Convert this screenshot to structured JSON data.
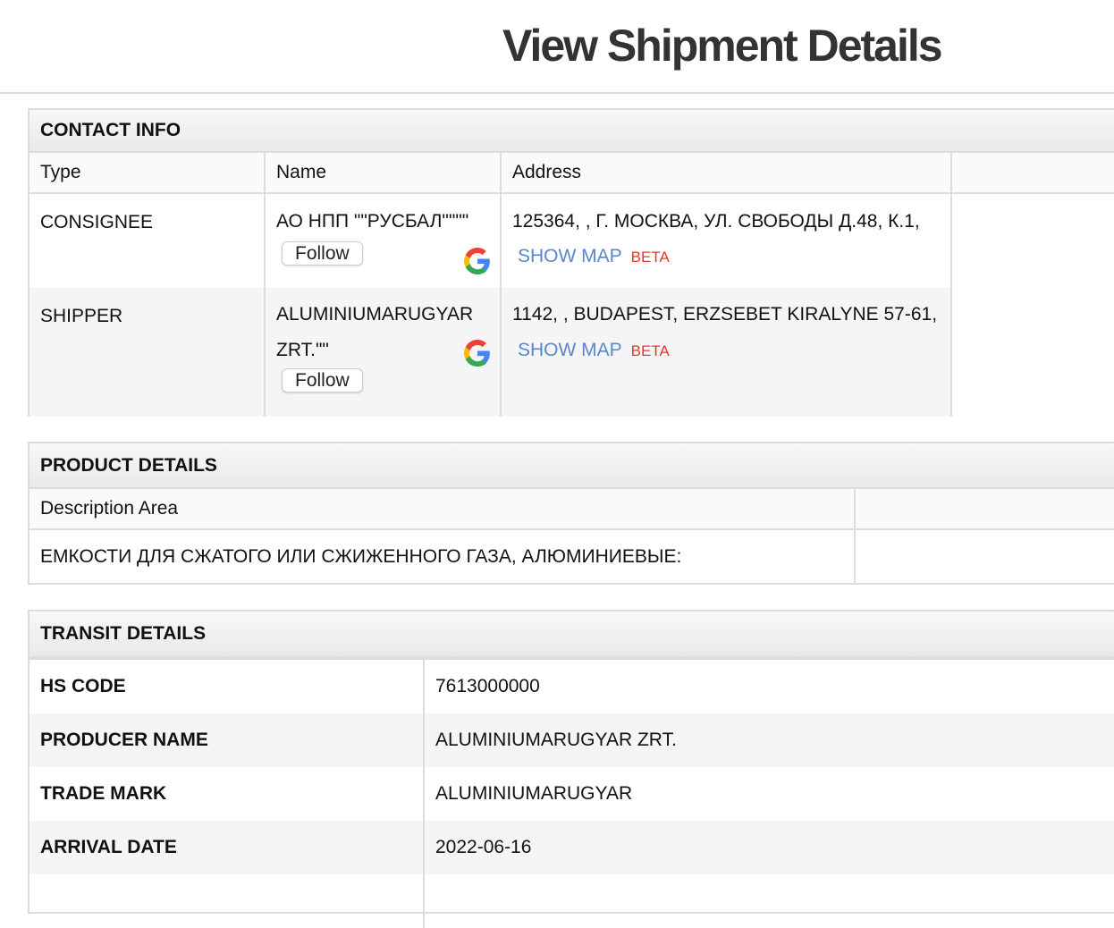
{
  "page_title": "View Shipment Details",
  "contact": {
    "heading": "CONTACT INFO",
    "columns": [
      "Type",
      "Name",
      "Address"
    ],
    "rows": [
      {
        "type": "CONSIGNEE",
        "name": "АО НПП \"\"РУСБАЛ\"\"\"\"",
        "follow": "Follow",
        "address": "125364, , Г. МОСКВА, УЛ. СВОБОДЫ Д.48, К.1,",
        "show_map": "SHOW MAP",
        "beta": "BETA"
      },
      {
        "type": "SHIPPER",
        "name": "ALUMINIUMARUGYAR ZRT.\"\"",
        "follow": "Follow",
        "address": "1142, , BUDAPEST, ERZSEBET KIRALYNE 57-61,",
        "show_map": "SHOW MAP",
        "beta": "BETA"
      }
    ]
  },
  "product": {
    "heading": "PRODUCT DETAILS",
    "column": "Description Area",
    "description": "ЕМКОСТИ ДЛЯ СЖАТОГО ИЛИ СЖИЖЕННОГО ГАЗА, АЛЮМИНИЕВЫЕ:"
  },
  "transit": {
    "heading": "TRANSIT DETAILS",
    "rows": [
      {
        "key": "HS CODE",
        "value": "7613000000"
      },
      {
        "key": "PRODUCER NAME",
        "value": "ALUMINIUMARUGYAR ZRT."
      },
      {
        "key": "TRADE MARK",
        "value": "ALUMINIUMARUGYAR"
      },
      {
        "key": "ARRIVAL DATE",
        "value": "2022-06-16"
      }
    ]
  },
  "icons": {
    "google": "google-g-icon"
  },
  "colors": {
    "link": "#5b86c9",
    "beta": "#e23a2c"
  }
}
